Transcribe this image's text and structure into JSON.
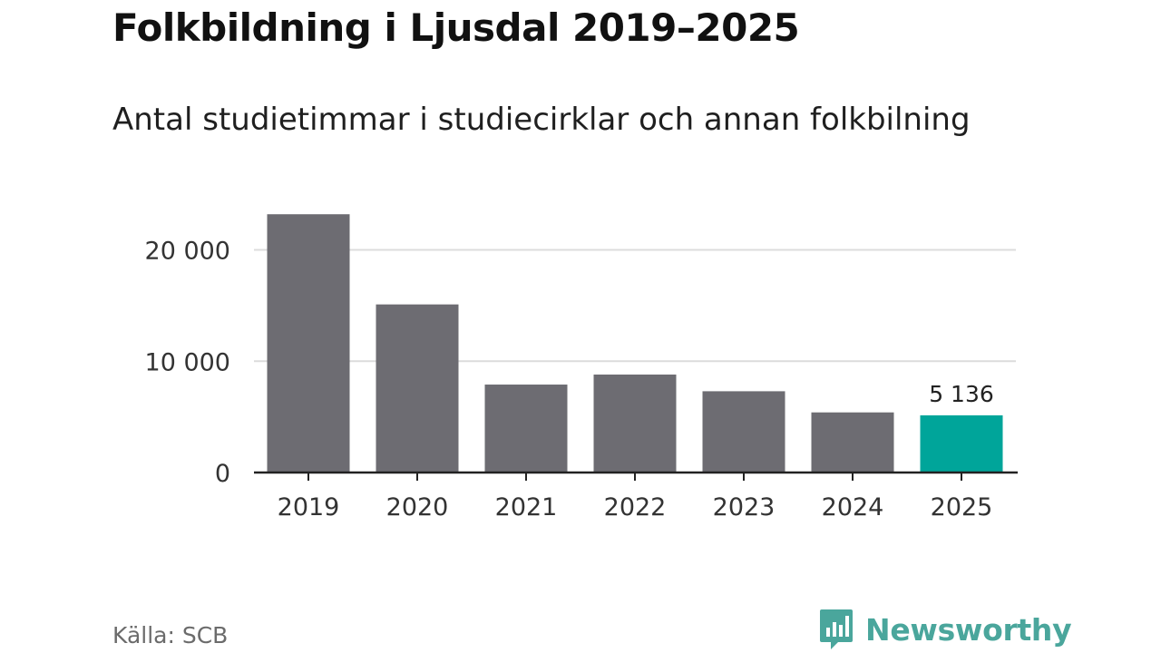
{
  "title": "Folkbildning i Ljusdal 2019–2025",
  "subtitle": "Antal studietimmar i studiecirklar och annan folkbilning",
  "source": "Källa: SCB",
  "brand": {
    "name": "Newsworthy",
    "icon": "newsworthy-logo-icon",
    "color": "#4aa69c"
  },
  "chart_data": {
    "type": "bar",
    "categories": [
      "2019",
      "2020",
      "2021",
      "2022",
      "2023",
      "2024",
      "2025"
    ],
    "values": [
      23200,
      15100,
      7900,
      8800,
      7300,
      5400,
      5136
    ],
    "ylim": [
      0,
      25500
    ],
    "yticks": [
      0,
      10000,
      20000
    ],
    "ytick_labels": [
      "0",
      "10 000",
      "20 000"
    ],
    "grid": true,
    "colors": {
      "default": "#6d6c72",
      "highlight": "#00a59a"
    },
    "highlight_index": 6,
    "annotations": [
      {
        "index": 6,
        "label": "5 136"
      }
    ]
  }
}
